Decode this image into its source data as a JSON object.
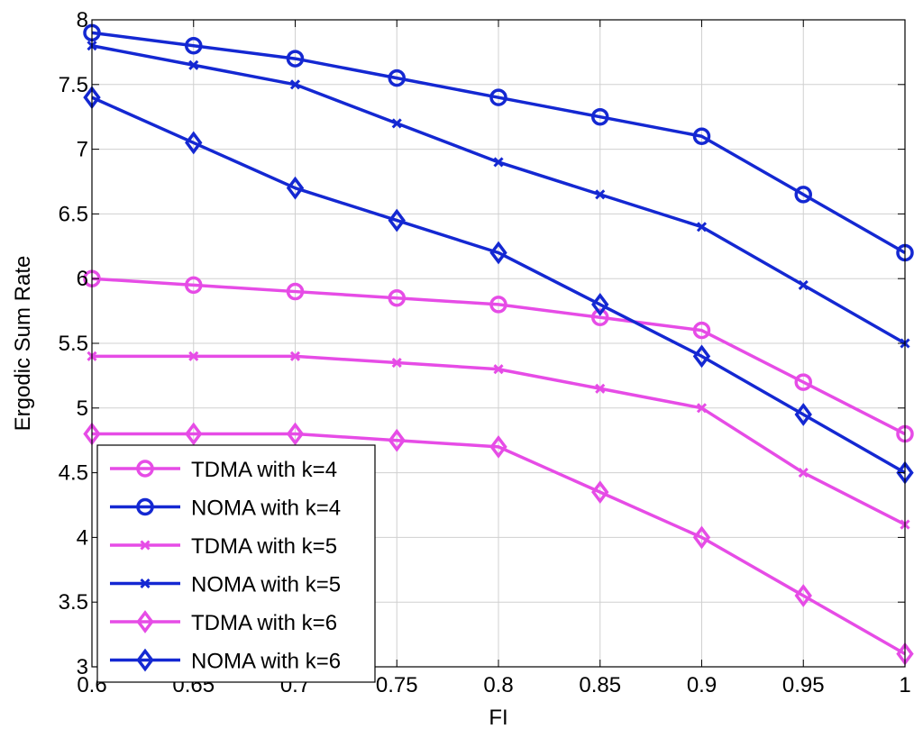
{
  "chart_data": {
    "type": "line",
    "title": "",
    "xlabel": "FI",
    "ylabel": "Ergodic Sum Rate",
    "x": [
      0.6,
      0.65,
      0.7,
      0.75,
      0.8,
      0.85,
      0.9,
      0.95,
      1.0
    ],
    "xlim": [
      0.6,
      1.0
    ],
    "ylim": [
      3,
      8
    ],
    "x_ticks": [
      0.6,
      0.65,
      0.7,
      0.75,
      0.8,
      0.85,
      0.9,
      0.95,
      1.0
    ],
    "x_tick_labels": [
      "0.6",
      "0.65",
      "0.7",
      "0.75",
      "0.8",
      "0.85",
      "0.9",
      "0.95",
      "1"
    ],
    "y_ticks": [
      3,
      3.5,
      4,
      4.5,
      5,
      5.5,
      6,
      6.5,
      7,
      7.5,
      8
    ],
    "y_tick_labels": [
      "3",
      "3.5",
      "4",
      "4.5",
      "5",
      "5.5",
      "6",
      "6.5",
      "7",
      "7.5",
      "8"
    ],
    "grid": true,
    "legend_position": "bottom-left",
    "colors": {
      "tdma": "#e64ce6",
      "noma": "#1428d2"
    },
    "series": [
      {
        "name": "TDMA with k=4",
        "color_key": "tdma",
        "marker": "circle",
        "values": [
          6.0,
          5.95,
          5.9,
          5.85,
          5.8,
          5.7,
          5.6,
          5.2,
          4.8
        ]
      },
      {
        "name": "NOMA with k=4",
        "color_key": "noma",
        "marker": "circle",
        "values": [
          7.9,
          7.8,
          7.7,
          7.55,
          7.4,
          7.25,
          7.1,
          6.65,
          6.2
        ]
      },
      {
        "name": "TDMA with k=5",
        "color_key": "tdma",
        "marker": "x",
        "values": [
          5.4,
          5.4,
          5.4,
          5.35,
          5.3,
          5.15,
          5.0,
          4.5,
          4.1
        ]
      },
      {
        "name": "NOMA with k=5",
        "color_key": "noma",
        "marker": "x",
        "values": [
          7.8,
          7.65,
          7.5,
          7.2,
          6.9,
          6.65,
          6.4,
          5.95,
          5.5
        ]
      },
      {
        "name": "TDMA with k=6",
        "color_key": "tdma",
        "marker": "diamond",
        "values": [
          4.8,
          4.8,
          4.8,
          4.75,
          4.7,
          4.35,
          4.0,
          3.55,
          3.1
        ]
      },
      {
        "name": "NOMA with k=6",
        "color_key": "noma",
        "marker": "diamond",
        "values": [
          7.4,
          7.05,
          6.7,
          6.45,
          6.2,
          5.8,
          5.4,
          4.95,
          4.5
        ]
      }
    ]
  }
}
